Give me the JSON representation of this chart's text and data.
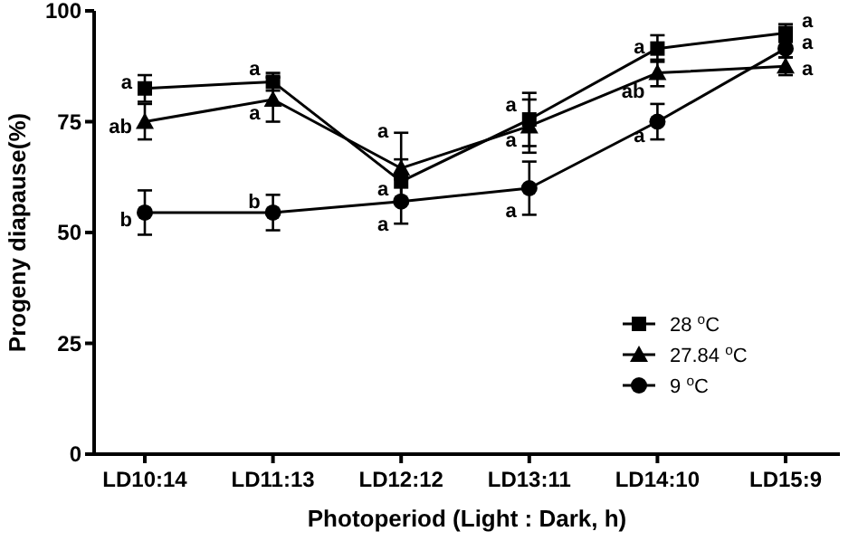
{
  "chart_data": {
    "type": "line",
    "xlabel": "Photoperiod (Light : Dark, h)",
    "ylabel": "Progeny diapause(%)",
    "categories": [
      "LD10:14",
      "LD11:13",
      "LD12:12",
      "LD13:11",
      "LD14:10",
      "LD15:9"
    ],
    "ylim": [
      0,
      100
    ],
    "yticks": [
      0,
      25,
      50,
      75,
      100
    ],
    "grid": false,
    "legend": "bottom right",
    "series": [
      {
        "name": "28 $^{o}$C",
        "color": "#000000",
        "marker": "square",
        "values": [
          82.5,
          84,
          61.5,
          75.5,
          91.5,
          95
        ],
        "errors": [
          3,
          2,
          5,
          6,
          3,
          2
        ]
      },
      {
        "name": "27.84 $^{o}$C",
        "color": "#000000",
        "marker": "triangle",
        "values": [
          75,
          80,
          64.5,
          74,
          86,
          87.5
        ],
        "errors": [
          4,
          5,
          8,
          6,
          3,
          2
        ]
      },
      {
        "name": "9 $^{o}$C",
        "color": "#000000",
        "marker": "circle",
        "values": [
          54.5,
          54.5,
          57,
          60,
          75,
          91.5
        ],
        "errors": [
          5,
          4,
          5,
          6,
          4,
          2
        ]
      }
    ],
    "annotations": [
      {
        "text": "a",
        "x": "LD10:14",
        "y": 84
      },
      {
        "text": "ab",
        "x": "LD10:14",
        "y": 74
      },
      {
        "text": "b",
        "x": "LD10:14",
        "y": 53
      },
      {
        "text": "a",
        "x": "LD11:13",
        "y": 87
      },
      {
        "text": "a",
        "x": "LD11:13",
        "y": 77
      },
      {
        "text": "b",
        "x": "LD11:13",
        "y": 57
      },
      {
        "text": "a",
        "x": "LD12:12",
        "y": 73
      },
      {
        "text": "a",
        "x": "LD12:12",
        "y": 60
      },
      {
        "text": "a",
        "x": "LD12:12",
        "y": 52
      },
      {
        "text": "a",
        "x": "LD13:11",
        "y": 79
      },
      {
        "text": "a",
        "x": "LD13:11",
        "y": 71
      },
      {
        "text": "a",
        "x": "LD13:11",
        "y": 55
      },
      {
        "text": "a",
        "x": "LD14:10",
        "y": 92
      },
      {
        "text": "ab",
        "x": "LD14:10",
        "y": 82
      },
      {
        "text": "a",
        "x": "LD14:10",
        "y": 72
      },
      {
        "text": "a",
        "x": "LD15:9",
        "y": 98
      },
      {
        "text": "a",
        "x": "LD15:9",
        "y": 93
      },
      {
        "text": "a",
        "x": "LD15:9",
        "y": 87
      }
    ]
  }
}
